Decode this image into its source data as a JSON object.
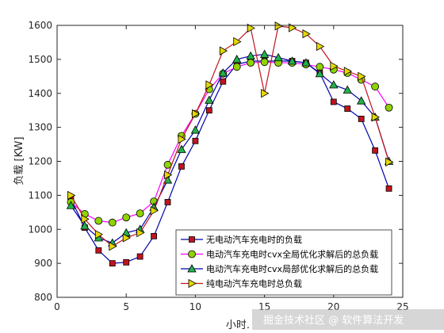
{
  "chart_data": {
    "type": "line",
    "xlabel": "小时.",
    "ylabel": "负载 [KW]",
    "xlim": [
      0,
      25
    ],
    "ylim": [
      800,
      1600
    ],
    "xticks": [
      0,
      5,
      10,
      15,
      20,
      25
    ],
    "yticks": [
      800,
      900,
      1000,
      1100,
      1200,
      1300,
      1400,
      1500,
      1600
    ],
    "grid": false,
    "legend_position": "bottom-right",
    "x": [
      1,
      2,
      3,
      4,
      5,
      6,
      7,
      8,
      9,
      10,
      11,
      12,
      13,
      14,
      15,
      16,
      17,
      18,
      19,
      20,
      21,
      22,
      23,
      24
    ],
    "series": [
      {
        "name": "无电动汽车充电时的负载",
        "color": "#0000aa",
        "marker": "square",
        "marker_color": "#c0141e",
        "values": [
          1090,
          1005,
          938,
          900,
          903,
          920,
          980,
          1080,
          1185,
          1260,
          1350,
          1435,
          1485,
          1495,
          1495,
          1495,
          1495,
          1490,
          1460,
          1375,
          1355,
          1325,
          1232,
          1120
        ]
      },
      {
        "name": "电动汽车充电时cvx全局优化求解后的总负载",
        "color": "#ff00ff",
        "marker": "circle",
        "marker_color": "#8ed400",
        "values": [
          1080,
          1045,
          1025,
          1020,
          1035,
          1047,
          1082,
          1190,
          1275,
          1340,
          1412,
          1458,
          1478,
          1490,
          1492,
          1490,
          1490,
          1485,
          1478,
          1470,
          1460,
          1440,
          1420,
          1358
        ]
      },
      {
        "name": "电动汽车充电时cvx局部优化求解后的总负载",
        "color": "#0000aa",
        "marker": "triangle",
        "marker_color": "#22b24c",
        "values": [
          1070,
          1010,
          975,
          960,
          990,
          1000,
          1065,
          1145,
          1235,
          1292,
          1380,
          1460,
          1500,
          1510,
          1515,
          1505,
          1495,
          1490,
          1458,
          1425,
          1410,
          1378,
          1330,
          1200
        ]
      },
      {
        "name": "纯电动汽车充电时总负载",
        "color": "#c0141e",
        "marker": "triangle-right",
        "marker_color": "#e6d800",
        "values": [
          1100,
          1030,
          985,
          950,
          975,
          990,
          1055,
          1160,
          1265,
          1340,
          1425,
          1525,
          1552,
          1592,
          1400,
          1598,
          1593,
          1575,
          1538,
          1480,
          1465,
          1450,
          1330,
          1198
        ]
      }
    ]
  },
  "watermark": "掘金技术社区 @ 软件算法开发"
}
